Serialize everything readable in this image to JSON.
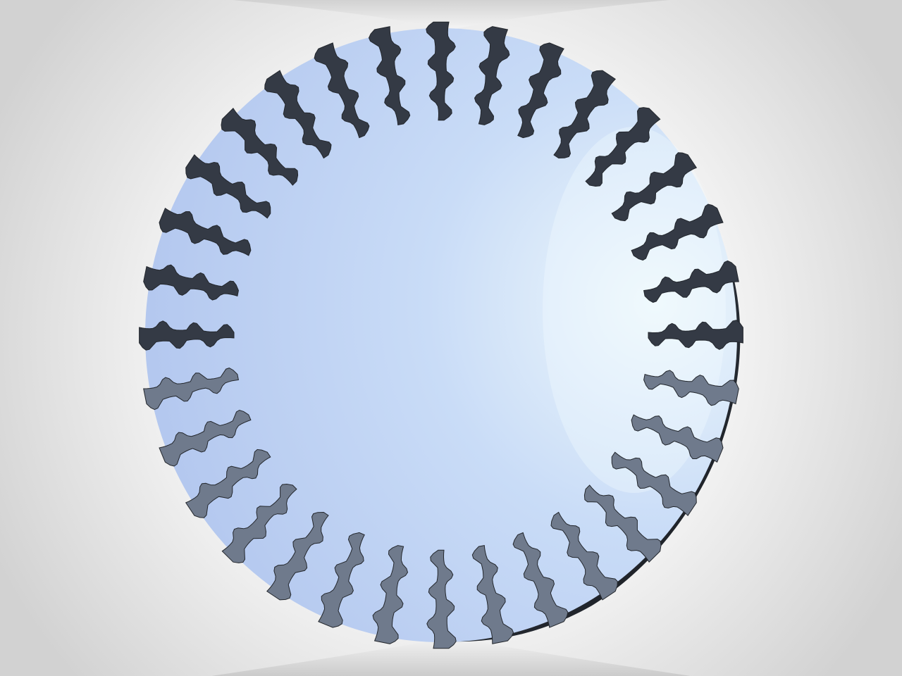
{
  "scene": {
    "subject": "slotted-disc-render",
    "slot_count": 32,
    "colors": {
      "background_center": "#ffffff",
      "background_edge": "#d2d2d2",
      "disc_light": "#eef8fc",
      "disc_mid": "#c9dcf7",
      "disc_dark": "#b4c8ef",
      "rim_shadow": "#23272d",
      "slot_wall": "#343a45",
      "slot_wall_lit": "#6f7a8c"
    }
  }
}
